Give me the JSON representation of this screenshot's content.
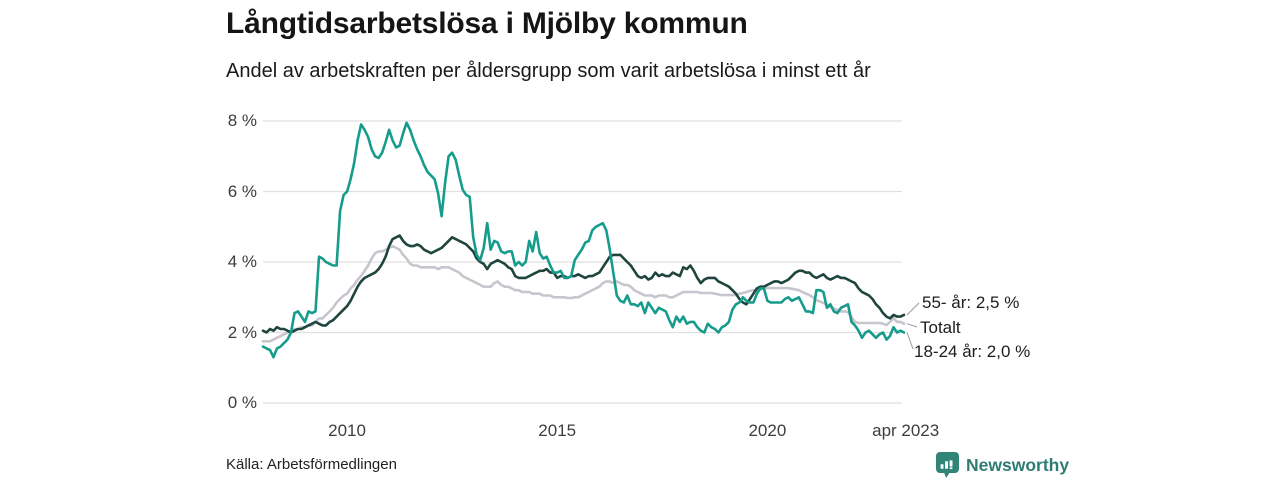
{
  "title": "Långtidsarbetslösa i Mjölby kommun",
  "subtitle": "Andel av arbetskraften per åldersgrupp som varit arbetslösa i minst ett år",
  "source": "Källa: Arbetsförmedlingen",
  "branding": {
    "label": "Newsworthy",
    "icon": "newsworthy-map-pin-barchart-icon",
    "icon_color": "#318578",
    "text_color": "#2e7d72"
  },
  "chart_data": {
    "type": "line",
    "title": "Långtidsarbetslösa i Mjölby kommun",
    "subtitle": "Andel av arbetskraften per åldersgrupp som varit arbetslösa i minst ett år",
    "x_unit": "month",
    "x_start": "2008-01",
    "x_end": "2023-04",
    "ylim": [
      0,
      8.7
    ],
    "grid": "horizontal",
    "grid_color": "#e0e0e0",
    "leader_line_color": "#9a9a9a",
    "yticks": [
      {
        "value": 0,
        "label": "0 %"
      },
      {
        "value": 2,
        "label": "2 %"
      },
      {
        "value": 4,
        "label": "4 %"
      },
      {
        "value": 6,
        "label": "6 %"
      },
      {
        "value": 8,
        "label": "8 %"
      }
    ],
    "xticks": [
      {
        "year": 2010,
        "label": "2010"
      },
      {
        "year": 2015,
        "label": "2015"
      },
      {
        "year": 2020,
        "label": "2020"
      },
      {
        "year": 2023.29,
        "label": "apr 2023"
      }
    ],
    "series": [
      {
        "name": "Totalt",
        "end_label": "Totalt",
        "end_value": 2.25,
        "color": "#c7c5cd",
        "values": [
          1.75,
          1.75,
          1.75,
          1.8,
          1.85,
          1.9,
          1.95,
          2.0,
          2.05,
          2.1,
          2.1,
          2.15,
          2.15,
          2.2,
          2.2,
          2.3,
          2.4,
          2.4,
          2.5,
          2.6,
          2.7,
          2.85,
          2.95,
          3.05,
          3.1,
          3.25,
          3.35,
          3.5,
          3.6,
          3.75,
          3.9,
          4.1,
          4.25,
          4.3,
          4.3,
          4.35,
          4.4,
          4.45,
          4.4,
          4.35,
          4.2,
          4.1,
          3.95,
          3.9,
          3.9,
          3.85,
          3.85,
          3.85,
          3.85,
          3.85,
          3.8,
          3.85,
          3.85,
          3.85,
          3.8,
          3.75,
          3.7,
          3.6,
          3.55,
          3.5,
          3.45,
          3.4,
          3.35,
          3.3,
          3.3,
          3.3,
          3.4,
          3.45,
          3.35,
          3.3,
          3.3,
          3.25,
          3.2,
          3.2,
          3.15,
          3.15,
          3.15,
          3.1,
          3.1,
          3.1,
          3.05,
          3.05,
          3.05,
          3.0,
          3.0,
          3.0,
          3.0,
          2.98,
          2.98,
          3.0,
          3.0,
          3.05,
          3.1,
          3.15,
          3.2,
          3.25,
          3.3,
          3.4,
          3.45,
          3.45,
          3.4,
          3.45,
          3.4,
          3.35,
          3.35,
          3.3,
          3.2,
          3.15,
          3.1,
          3.05,
          3.05,
          3.05,
          3.0,
          3.05,
          3.05,
          3.05,
          3.0,
          3.0,
          3.05,
          3.1,
          3.15,
          3.15,
          3.15,
          3.15,
          3.15,
          3.12,
          3.12,
          3.12,
          3.12,
          3.1,
          3.08,
          3.06,
          3.06,
          3.06,
          3.06,
          3.06,
          3.1,
          3.12,
          3.15,
          3.18,
          3.2,
          3.2,
          3.22,
          3.25,
          3.26,
          3.26,
          3.26,
          3.26,
          3.26,
          3.26,
          3.26,
          3.24,
          3.22,
          3.2,
          3.15,
          3.1,
          3.06,
          3.0,
          2.92,
          2.88,
          2.84,
          2.78,
          2.72,
          2.68,
          2.64,
          2.6,
          2.6,
          2.58,
          2.44,
          2.3,
          2.27,
          2.27,
          2.27,
          2.27,
          2.27,
          2.27,
          2.27,
          2.25,
          2.21,
          2.3,
          2.41,
          2.3,
          2.3,
          2.25
        ]
      },
      {
        "name": "55- år",
        "end_label": "55- år: 2,5 %",
        "end_value": 2.5,
        "color": "#20453e",
        "values": [
          2.05,
          2.0,
          2.1,
          2.05,
          2.15,
          2.1,
          2.1,
          2.05,
          2.0,
          2.05,
          2.1,
          2.1,
          2.15,
          2.2,
          2.25,
          2.3,
          2.25,
          2.2,
          2.2,
          2.3,
          2.35,
          2.45,
          2.55,
          2.65,
          2.75,
          2.9,
          3.1,
          3.3,
          3.45,
          3.55,
          3.6,
          3.65,
          3.7,
          3.8,
          3.95,
          4.15,
          4.45,
          4.65,
          4.7,
          4.75,
          4.6,
          4.5,
          4.45,
          4.45,
          4.5,
          4.45,
          4.35,
          4.3,
          4.25,
          4.3,
          4.35,
          4.4,
          4.5,
          4.6,
          4.7,
          4.65,
          4.6,
          4.55,
          4.5,
          4.4,
          4.3,
          4.1,
          4.0,
          3.95,
          3.8,
          3.95,
          4.0,
          4.05,
          4.0,
          3.95,
          3.85,
          3.8,
          3.6,
          3.55,
          3.55,
          3.55,
          3.6,
          3.65,
          3.7,
          3.75,
          3.75,
          3.8,
          3.7,
          3.7,
          3.55,
          3.6,
          3.6,
          3.55,
          3.6,
          3.6,
          3.65,
          3.6,
          3.55,
          3.6,
          3.6,
          3.65,
          3.7,
          3.85,
          4.0,
          4.15,
          4.2,
          4.2,
          4.2,
          4.1,
          4.0,
          3.9,
          3.75,
          3.6,
          3.55,
          3.6,
          3.5,
          3.55,
          3.7,
          3.6,
          3.65,
          3.6,
          3.6,
          3.7,
          3.65,
          3.6,
          3.85,
          3.8,
          3.9,
          3.75,
          3.55,
          3.4,
          3.5,
          3.55,
          3.55,
          3.55,
          3.45,
          3.4,
          3.35,
          3.3,
          3.2,
          3.1,
          2.95,
          2.85,
          2.8,
          2.95,
          3.1,
          3.25,
          3.3,
          3.3,
          3.35,
          3.4,
          3.45,
          3.45,
          3.4,
          3.45,
          3.5,
          3.6,
          3.7,
          3.75,
          3.75,
          3.7,
          3.7,
          3.6,
          3.55,
          3.6,
          3.65,
          3.55,
          3.5,
          3.55,
          3.6,
          3.55,
          3.55,
          3.5,
          3.45,
          3.4,
          3.25,
          3.15,
          3.1,
          3.05,
          2.95,
          2.8,
          2.7,
          2.55,
          2.45,
          2.4,
          2.5,
          2.45,
          2.45,
          2.5
        ]
      },
      {
        "name": "18-24 år",
        "end_label": "18-24 år: 2,0 %",
        "end_value": 2.0,
        "color": "#169c8c",
        "values": [
          1.6,
          1.55,
          1.5,
          1.3,
          1.55,
          1.6,
          1.7,
          1.8,
          2.0,
          2.55,
          2.6,
          2.45,
          2.3,
          2.6,
          2.55,
          2.6,
          4.15,
          4.1,
          4.0,
          3.95,
          3.9,
          3.9,
          5.45,
          5.9,
          6.0,
          6.35,
          6.8,
          7.45,
          7.9,
          7.75,
          7.55,
          7.2,
          7.0,
          6.95,
          7.1,
          7.4,
          7.75,
          7.45,
          7.25,
          7.3,
          7.65,
          7.95,
          7.75,
          7.45,
          7.2,
          7.0,
          6.75,
          6.55,
          6.45,
          6.35,
          5.95,
          5.3,
          6.25,
          7.0,
          7.1,
          6.9,
          6.45,
          6.05,
          5.9,
          5.85,
          4.7,
          4.2,
          4.05,
          4.4,
          5.1,
          4.35,
          4.6,
          4.55,
          4.3,
          4.25,
          4.3,
          4.3,
          3.9,
          4.0,
          3.9,
          4.0,
          4.6,
          4.3,
          4.85,
          4.25,
          4.1,
          4.15,
          3.9,
          3.7,
          3.7,
          3.75,
          3.55,
          3.55,
          3.6,
          4.05,
          4.2,
          4.35,
          4.55,
          4.6,
          4.9,
          5.0,
          5.05,
          5.1,
          4.9,
          4.35,
          3.7,
          3.05,
          2.9,
          2.85,
          3.05,
          2.8,
          2.8,
          2.75,
          2.85,
          2.55,
          2.85,
          2.7,
          2.55,
          2.7,
          2.65,
          2.6,
          2.35,
          2.15,
          2.45,
          2.3,
          2.45,
          2.25,
          2.3,
          2.3,
          2.15,
          2.05,
          2.0,
          2.25,
          2.15,
          2.1,
          2.0,
          2.15,
          2.2,
          2.3,
          2.65,
          2.8,
          2.85,
          3.0,
          2.9,
          2.85,
          2.85,
          3.1,
          3.25,
          3.25,
          2.9,
          2.85,
          2.85,
          2.85,
          2.85,
          2.95,
          3.0,
          2.9,
          2.95,
          3.0,
          2.8,
          2.6,
          2.6,
          2.55,
          3.2,
          3.2,
          3.15,
          2.7,
          2.8,
          2.6,
          2.55,
          2.7,
          2.75,
          2.8,
          2.3,
          2.2,
          2.05,
          1.85,
          2.0,
          2.05,
          1.95,
          1.85,
          1.95,
          2.0,
          1.8,
          1.9,
          2.15,
          2.0,
          2.05,
          2.0
        ]
      }
    ]
  }
}
